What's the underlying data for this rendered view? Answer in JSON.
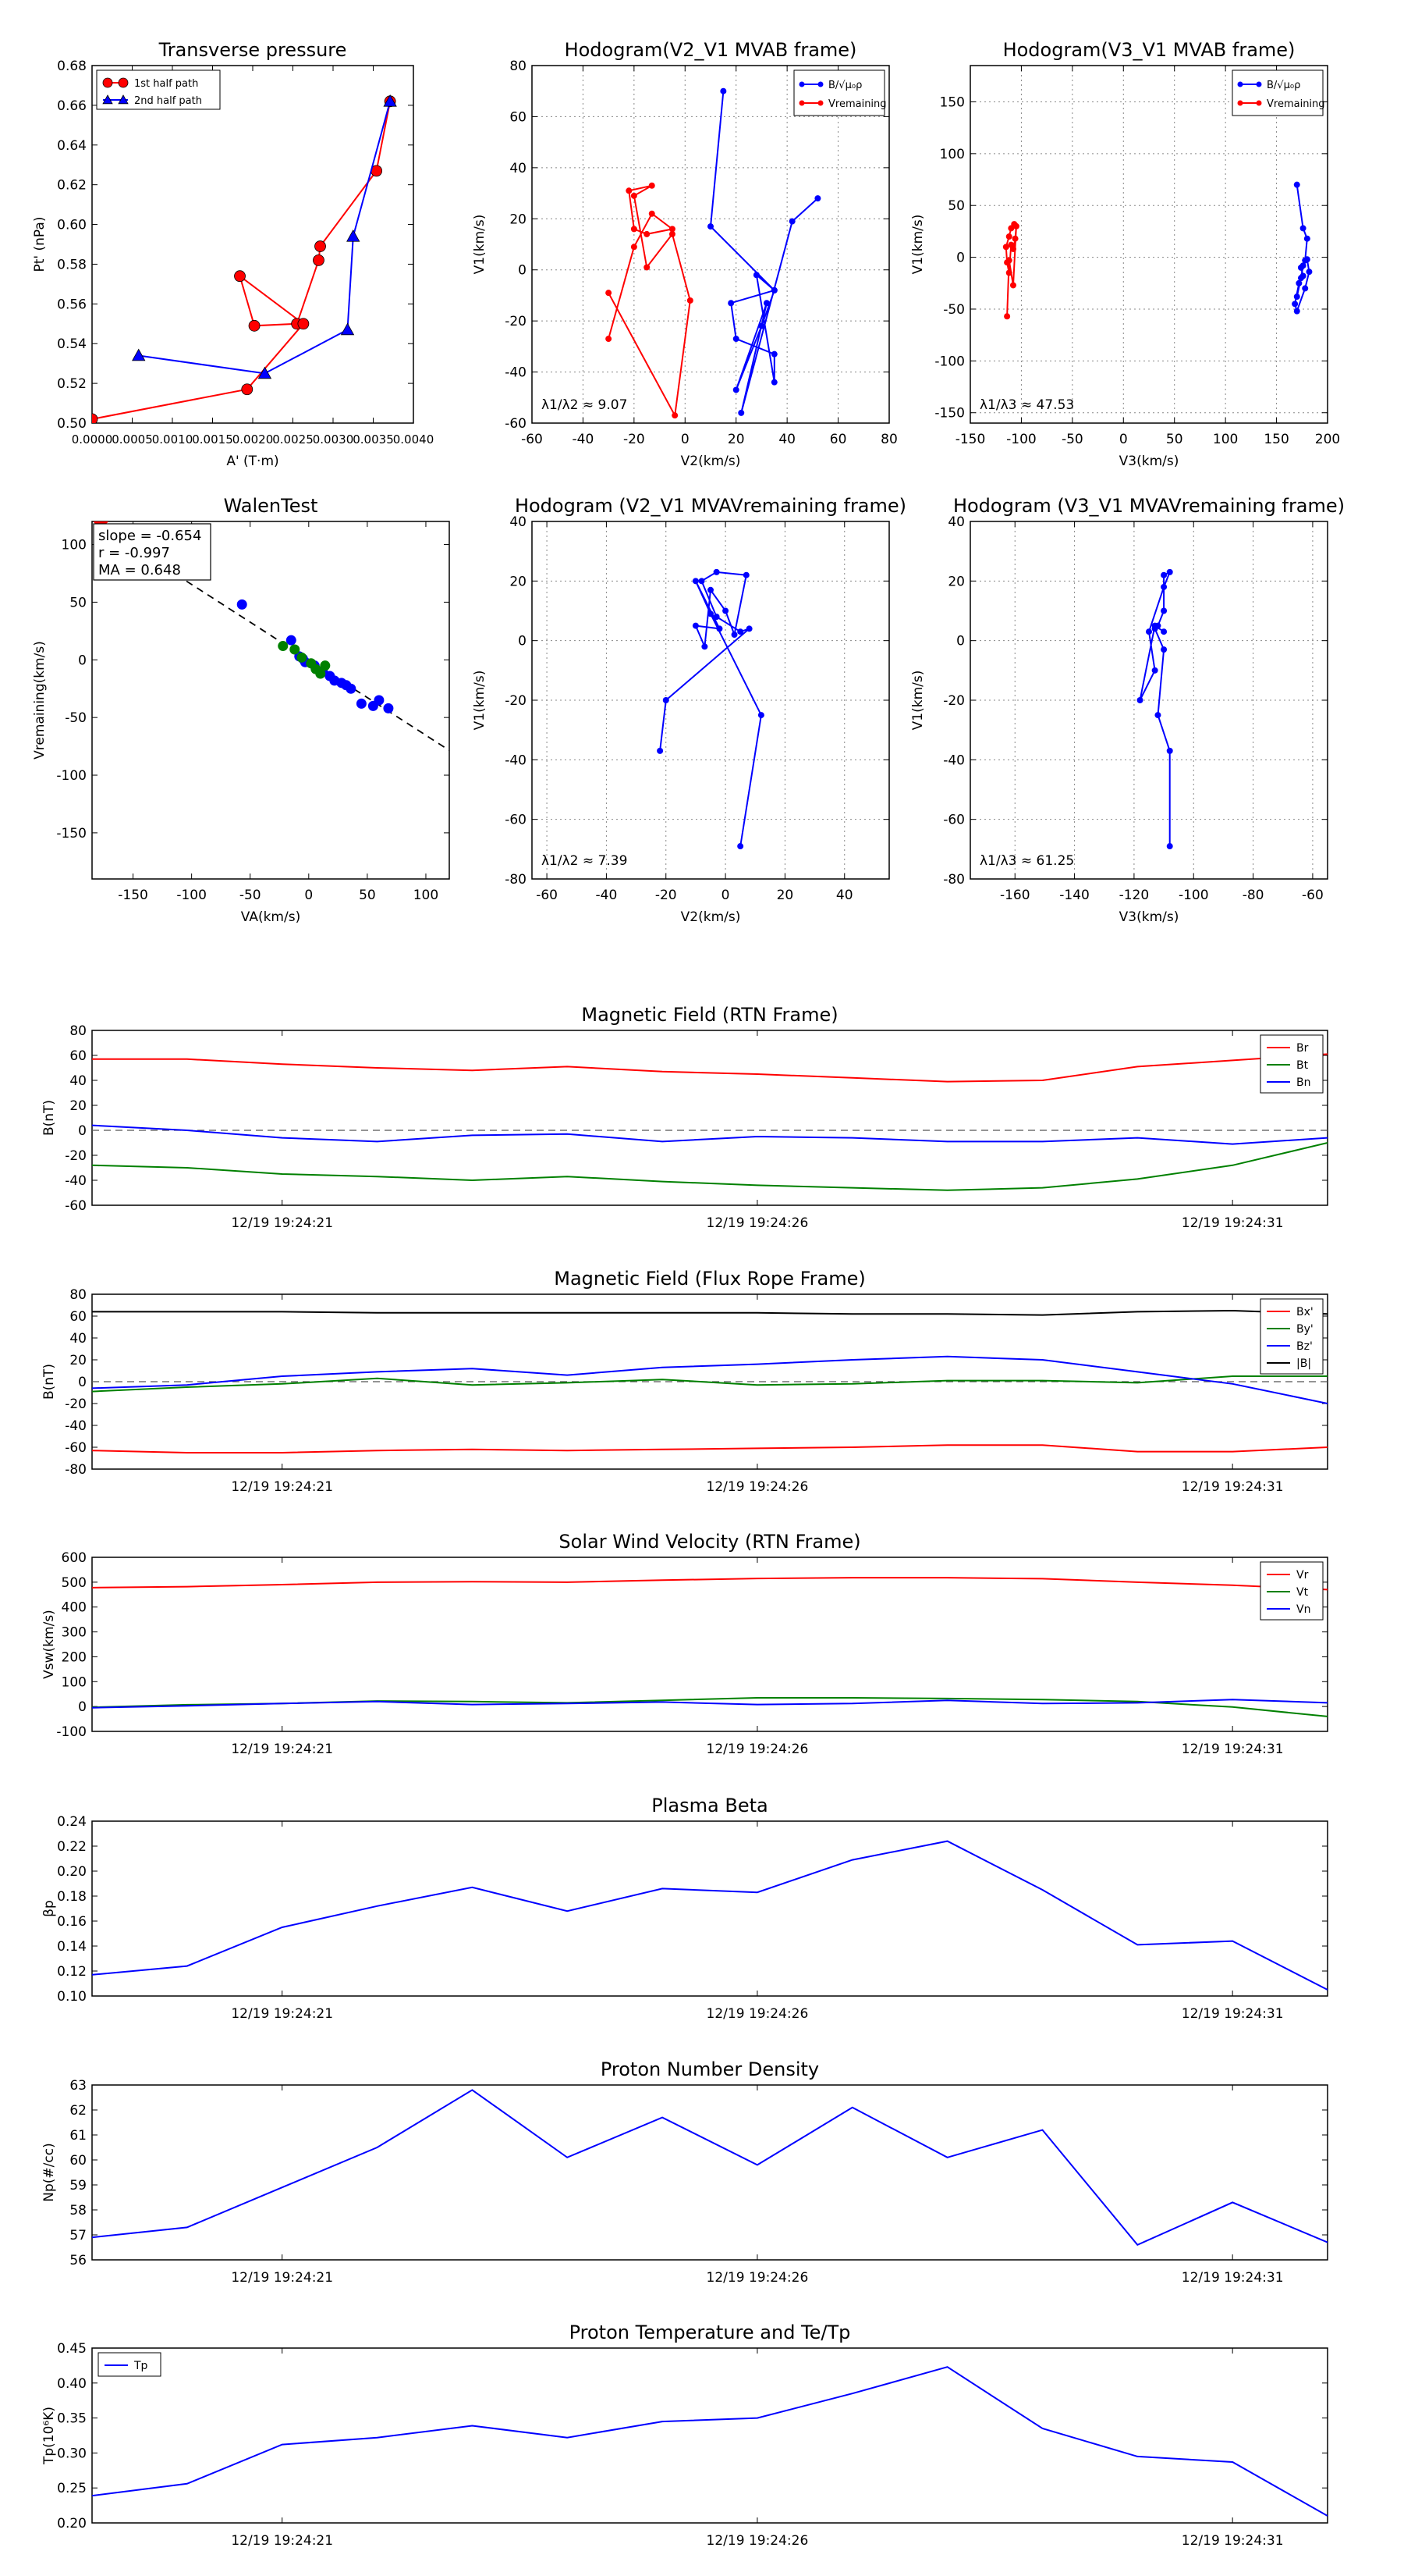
{
  "chart_data": [
    {
      "id": "transverse-pressure",
      "type": "line",
      "title": "Transverse pressure",
      "xlabel": "A' (T·m)",
      "ylabel": "Pt' (nPa)",
      "xlim": [
        0.0,
        0.004
      ],
      "ylim": [
        0.5,
        0.68
      ],
      "xticks": [
        0.0,
        0.0005,
        0.001,
        0.0015,
        0.002,
        0.0025,
        0.003,
        0.0035,
        0.004
      ],
      "xtick_labels": [
        "0.0000",
        "0.0005",
        "0.0010",
        "0.0015",
        "0.0020",
        "0.0025",
        "0.0030",
        "0.0035",
        "0.0040"
      ],
      "yticks": [
        0.5,
        0.52,
        0.54,
        0.56,
        0.58,
        0.6,
        0.62,
        0.64,
        0.66,
        0.68
      ],
      "ytick_labels": [
        "0.50",
        "0.52",
        "0.54",
        "0.56",
        "0.58",
        "0.60",
        "0.62",
        "0.64",
        "0.66",
        "0.68"
      ],
      "grid": false,
      "legend_position": "top-left",
      "series": [
        {
          "name": "1st half path",
          "color": "#ff0000",
          "marker": "circle",
          "x": [
            0.00371,
            0.00354,
            0.00284,
            0.00282,
            0.00255,
            0.00202,
            0.00184,
            0.00263,
            0.00193,
            0.0
          ],
          "y": [
            0.662,
            0.627,
            0.589,
            0.582,
            0.55,
            0.549,
            0.574,
            0.55,
            0.517,
            0.502
          ]
        },
        {
          "name": "2nd half path",
          "color": "#0000ff",
          "marker": "triangle",
          "x": [
            0.00371,
            0.00325,
            0.00318,
            0.00215,
            0.00058
          ],
          "y": [
            0.662,
            0.594,
            0.547,
            0.525,
            0.534
          ]
        }
      ]
    },
    {
      "id": "hodogram-v2v1-mvab",
      "type": "line",
      "title": "Hodogram(V2_V1 MVAB frame)",
      "xlabel": "V2(km/s)",
      "ylabel": "V1(km/s)",
      "xlim": [
        -60,
        80
      ],
      "ylim": [
        -60,
        80
      ],
      "xticks": [
        -60,
        -40,
        -20,
        0,
        20,
        40,
        60,
        80
      ],
      "yticks": [
        -60,
        -40,
        -20,
        0,
        20,
        40,
        60,
        80
      ],
      "grid": true,
      "legend_position": "top-right",
      "legend_labels": [
        "B/√μ₀ρ",
        "Vremaining"
      ],
      "annotation": "λ1/λ2 ≈ 9.07",
      "series": [
        {
          "name": "B/sqrt(mu0 rho)",
          "color": "#0000ff",
          "x": [
            15,
            10,
            35,
            18,
            20,
            35,
            35,
            28,
            35,
            30,
            20,
            32,
            22,
            42,
            52
          ],
          "y": [
            70,
            17,
            -8,
            -13,
            -27,
            -33,
            -44,
            -2,
            -8,
            -22,
            -47,
            -13,
            -56,
            19,
            28
          ]
        },
        {
          "name": "V remaining",
          "color": "#ff0000",
          "x": [
            -30,
            -20,
            -13,
            -5,
            -15,
            -20,
            -22,
            -13,
            -20,
            -15,
            -5,
            2,
            -4,
            -30
          ],
          "y": [
            -27,
            9,
            22,
            16,
            14,
            16,
            31,
            33,
            29,
            1,
            14,
            -12,
            -57,
            -9
          ]
        }
      ]
    },
    {
      "id": "hodogram-v3v1-mvab",
      "type": "line",
      "title": "Hodogram(V3_V1 MVAB frame)",
      "xlabel": "V3(km/s)",
      "ylabel": "V1(km/s)",
      "xlim": [
        -150,
        200
      ],
      "ylim": [
        -160,
        185
      ],
      "xticks": [
        -150,
        -100,
        -50,
        0,
        50,
        100,
        150,
        200
      ],
      "yticks": [
        -150,
        -100,
        -50,
        0,
        50,
        100,
        150
      ],
      "grid": true,
      "legend_position": "top-right",
      "legend_labels": [
        "B/√μ₀ρ",
        "Vremaining"
      ],
      "annotation": "λ1/λ3 ≈ 47.53",
      "series": [
        {
          "name": "B/sqrt(mu0 rho)",
          "color": "#0000ff",
          "x": [
            170,
            176,
            180,
            178,
            174,
            176,
            172,
            168,
            170,
            178,
            182,
            180,
            176,
            174,
            170
          ],
          "y": [
            70,
            28,
            18,
            -3,
            -10,
            -18,
            -25,
            -45,
            -52,
            -30,
            -14,
            -2,
            -8,
            -20,
            -38
          ]
        },
        {
          "name": "V remaining",
          "color": "#ff0000",
          "x": [
            -107,
            -110,
            -112,
            -115,
            -114,
            -112,
            -110,
            -108,
            -106,
            -105,
            -108,
            -112,
            -114
          ],
          "y": [
            32,
            28,
            20,
            10,
            -5,
            -15,
            12,
            8,
            18,
            30,
            -27,
            -3,
            -57
          ]
        }
      ]
    },
    {
      "id": "walen-test",
      "type": "scatter",
      "title": "WalenTest",
      "xlabel": "VA(km/s)",
      "ylabel": "Vremaining(km/s)",
      "xlim": [
        -185,
        120
      ],
      "ylim": [
        -190,
        120
      ],
      "xticks": [
        -150,
        -100,
        -50,
        0,
        50,
        100
      ],
      "yticks": [
        -150,
        -100,
        -50,
        0,
        50,
        100
      ],
      "grid": false,
      "annotation_lines": [
        "slope = -0.654",
        "r = -0.997",
        "MA = 0.648"
      ],
      "fit_line": {
        "slope": -0.654,
        "intercept": 0,
        "color": "#000000",
        "style": "dashed"
      },
      "series": [
        {
          "name": "blue points",
          "color": "#0000ff",
          "x": [
            -57,
            -15,
            -8,
            -5,
            -3,
            5,
            12,
            18,
            22,
            28,
            32,
            36,
            45,
            55,
            60,
            68
          ],
          "y": [
            48,
            17,
            3,
            1,
            -2,
            -5,
            -10,
            -14,
            -18,
            -20,
            -22,
            -25,
            -38,
            -40,
            -35,
            -42
          ]
        },
        {
          "name": "green points",
          "color": "#008000",
          "x": [
            -22,
            -12,
            -6,
            2,
            6,
            10,
            14
          ],
          "y": [
            12,
            9,
            2,
            -3,
            -8,
            -12,
            -5
          ]
        },
        {
          "name": "red points",
          "color": "#ff0000",
          "x": [
            -180,
            -175
          ],
          "y": [
            122,
            122
          ]
        }
      ]
    },
    {
      "id": "hodogram-v2v1-mvav",
      "type": "line",
      "title": "Hodogram (V2_V1 MVAVremaining frame)",
      "xlabel": "V2(km/s)",
      "ylabel": "V1(km/s)",
      "xlim": [
        -65,
        55
      ],
      "ylim": [
        -80,
        40
      ],
      "xticks": [
        -60,
        -40,
        -20,
        0,
        20,
        40
      ],
      "yticks": [
        -80,
        -60,
        -40,
        -20,
        0,
        20,
        40
      ],
      "grid": true,
      "annotation": "λ1/λ2 ≈ 7.39",
      "series": [
        {
          "name": "V remaining",
          "color": "#0000ff",
          "x": [
            5,
            12,
            -5,
            -10,
            -2,
            -10,
            -7,
            -5,
            0,
            3,
            7,
            -3,
            -8,
            -3,
            5,
            8,
            -20,
            -22
          ],
          "y": [
            -69,
            -25,
            9,
            20,
            4,
            5,
            -2,
            17,
            10,
            2,
            22,
            23,
            20,
            8,
            3,
            4,
            -20,
            -37
          ]
        }
      ]
    },
    {
      "id": "hodogram-v3v1-mvav",
      "type": "line",
      "title": "Hodogram (V3_V1 MVAVremaining frame)",
      "xlabel": "V3(km/s)",
      "ylabel": "V1(km/s)",
      "xlim": [
        -175,
        -55
      ],
      "ylim": [
        -80,
        40
      ],
      "xticks": [
        -160,
        -140,
        -120,
        -100,
        -80,
        -60
      ],
      "yticks": [
        -80,
        -60,
        -40,
        -20,
        0,
        20,
        40
      ],
      "grid": true,
      "annotation": "λ1/λ3 ≈ 61.25",
      "series": [
        {
          "name": "V remaining",
          "color": "#0000ff",
          "x": [
            -108,
            -108,
            -112,
            -110,
            -113,
            -112,
            -110,
            -110,
            -108,
            -110,
            -115,
            -113,
            -118,
            -113,
            -110
          ],
          "y": [
            -69,
            -37,
            -25,
            -3,
            4,
            5,
            10,
            22,
            23,
            18,
            3,
            -10,
            -20,
            5,
            3
          ]
        }
      ]
    },
    {
      "id": "magnetic-field-rtn",
      "type": "line",
      "title": "Magnetic Field (RTN Frame)",
      "xlabel": "",
      "ylabel": "B(nT)",
      "ylim": [
        -60,
        80
      ],
      "yticks": [
        -60,
        -40,
        -20,
        0,
        20,
        40,
        60,
        80
      ],
      "x": [
        0,
        1,
        2,
        3,
        4,
        5,
        6,
        7,
        8,
        9,
        10,
        11,
        12,
        13
      ],
      "xlim": [
        0,
        13
      ],
      "xtick_positions": [
        2,
        7,
        12
      ],
      "xtick_labels": [
        "12/19 19:24:21",
        "12/19 19:24:26",
        "12/19 19:24:31"
      ],
      "zero_line": true,
      "legend_position": "top-right",
      "series": [
        {
          "name": "Br",
          "color": "#ff0000",
          "values": [
            57,
            57,
            53,
            50,
            48,
            51,
            47,
            45,
            42,
            39,
            40,
            51,
            56,
            61
          ]
        },
        {
          "name": "Bt",
          "color": "#008000",
          "values": [
            -28,
            -30,
            -35,
            -37,
            -40,
            -37,
            -41,
            -44,
            -46,
            -48,
            -46,
            -39,
            -28,
            -10
          ]
        },
        {
          "name": "Bn",
          "color": "#0000ff",
          "values": [
            4,
            0,
            -6,
            -9,
            -4,
            -3,
            -9,
            -5,
            -6,
            -9,
            -9,
            -6,
            -11,
            -6
          ]
        }
      ]
    },
    {
      "id": "magnetic-field-flux-rope",
      "type": "line",
      "title": "Magnetic Field (Flux Rope Frame)",
      "xlabel": "",
      "ylabel": "B(nT)",
      "ylim": [
        -80,
        80
      ],
      "yticks": [
        -80,
        -60,
        -40,
        -20,
        0,
        20,
        40,
        60,
        80
      ],
      "x": [
        0,
        1,
        2,
        3,
        4,
        5,
        6,
        7,
        8,
        9,
        10,
        11,
        12,
        13
      ],
      "xlim": [
        0,
        13
      ],
      "xtick_positions": [
        2,
        7,
        12
      ],
      "xtick_labels": [
        "12/19 19:24:21",
        "12/19 19:24:26",
        "12/19 19:24:31"
      ],
      "zero_line": true,
      "legend_position": "top-right",
      "series": [
        {
          "name": "Bx'",
          "color": "#ff0000",
          "values": [
            -63,
            -65,
            -65,
            -63,
            -62,
            -63,
            -62,
            -61,
            -60,
            -58,
            -58,
            -64,
            -64,
            -60
          ]
        },
        {
          "name": "By'",
          "color": "#008000",
          "values": [
            -9,
            -5,
            -2,
            3,
            -3,
            -1,
            2,
            -3,
            -2,
            1,
            1,
            -1,
            5,
            5
          ]
        },
        {
          "name": "Bz'",
          "color": "#0000ff",
          "values": [
            -6,
            -3,
            5,
            9,
            12,
            6,
            13,
            16,
            20,
            23,
            20,
            9,
            -2,
            -20
          ]
        },
        {
          "name": "|B|",
          "color": "#000000",
          "values": [
            64,
            64,
            64,
            63,
            63,
            63,
            63,
            63,
            62,
            62,
            61,
            64,
            65,
            62
          ]
        }
      ]
    },
    {
      "id": "solar-wind-velocity",
      "type": "line",
      "title": "Solar Wind Velocity (RTN Frame)",
      "xlabel": "",
      "ylabel": "Vsw(km/s)",
      "ylim": [
        -100,
        600
      ],
      "yticks": [
        -100,
        0,
        100,
        200,
        300,
        400,
        500,
        600
      ],
      "x": [
        0,
        1,
        2,
        3,
        4,
        5,
        6,
        7,
        8,
        9,
        10,
        11,
        12,
        13
      ],
      "xlim": [
        0,
        13
      ],
      "xtick_positions": [
        2,
        7,
        12
      ],
      "xtick_labels": [
        "12/19 19:24:21",
        "12/19 19:24:26",
        "12/19 19:24:31"
      ],
      "legend_position": "top-right",
      "series": [
        {
          "name": "Vr",
          "color": "#ff0000",
          "values": [
            478,
            482,
            490,
            500,
            502,
            500,
            508,
            515,
            518,
            518,
            514,
            500,
            488,
            470
          ]
        },
        {
          "name": "Vt",
          "color": "#008000",
          "values": [
            -3,
            7,
            12,
            22,
            20,
            15,
            25,
            35,
            35,
            32,
            28,
            20,
            -2,
            -40
          ]
        },
        {
          "name": "Vn",
          "color": "#0000ff",
          "values": [
            -5,
            3,
            12,
            20,
            8,
            12,
            18,
            8,
            12,
            25,
            12,
            15,
            28,
            15
          ]
        }
      ]
    },
    {
      "id": "plasma-beta",
      "type": "line",
      "title": "Plasma Beta",
      "xlabel": "",
      "ylabel": "βp",
      "ylim": [
        0.1,
        0.24
      ],
      "yticks": [
        0.1,
        0.12,
        0.14,
        0.16,
        0.18,
        0.2,
        0.22,
        0.24
      ],
      "ytick_labels": [
        "0.10",
        "0.12",
        "0.14",
        "0.16",
        "0.18",
        "0.20",
        "0.22",
        "0.24"
      ],
      "x": [
        0,
        1,
        2,
        3,
        4,
        5,
        6,
        7,
        8,
        9,
        10,
        11,
        12,
        13
      ],
      "xlim": [
        0,
        13
      ],
      "xtick_positions": [
        2,
        7,
        12
      ],
      "xtick_labels": [
        "12/19 19:24:21",
        "12/19 19:24:26",
        "12/19 19:24:31"
      ],
      "series": [
        {
          "name": "beta",
          "color": "#0000ff",
          "values": [
            0.117,
            0.124,
            0.155,
            0.172,
            0.187,
            0.168,
            0.186,
            0.183,
            0.209,
            0.224,
            0.185,
            0.141,
            0.144,
            0.105
          ]
        }
      ]
    },
    {
      "id": "proton-number-density",
      "type": "line",
      "title": "Proton Number Density",
      "xlabel": "",
      "ylabel": "Np(#/cc)",
      "ylim": [
        56,
        63
      ],
      "yticks": [
        56,
        57,
        58,
        59,
        60,
        61,
        62,
        63
      ],
      "x": [
        0,
        1,
        2,
        3,
        4,
        5,
        6,
        7,
        8,
        9,
        10,
        11,
        12,
        13
      ],
      "xlim": [
        0,
        13
      ],
      "xtick_positions": [
        2,
        7,
        12
      ],
      "xtick_labels": [
        "12/19 19:24:21",
        "12/19 19:24:26",
        "12/19 19:24:31"
      ],
      "series": [
        {
          "name": "Np",
          "color": "#0000ff",
          "values": [
            56.9,
            57.3,
            58.9,
            60.5,
            62.8,
            60.1,
            61.7,
            59.8,
            62.1,
            60.1,
            61.2,
            56.6,
            58.3,
            56.7
          ]
        }
      ]
    },
    {
      "id": "proton-temperature",
      "type": "line",
      "title": "Proton Temperature and Te/Tp",
      "xlabel": "",
      "ylabel": "Tp(10⁶K)",
      "ylim": [
        0.2,
        0.45
      ],
      "yticks": [
        0.2,
        0.25,
        0.3,
        0.35,
        0.4,
        0.45
      ],
      "ytick_labels": [
        "0.20",
        "0.25",
        "0.30",
        "0.35",
        "0.40",
        "0.45"
      ],
      "x": [
        0,
        1,
        2,
        3,
        4,
        5,
        6,
        7,
        8,
        9,
        10,
        11,
        12,
        13
      ],
      "xlim": [
        0,
        13
      ],
      "xtick_positions": [
        2,
        7,
        12
      ],
      "xtick_labels": [
        "12/19 19:24:21",
        "12/19 19:24:26",
        "12/19 19:24:31"
      ],
      "legend_position": "top-left",
      "series": [
        {
          "name": "Tp",
          "color": "#0000ff",
          "values": [
            0.239,
            0.256,
            0.312,
            0.322,
            0.339,
            0.322,
            0.345,
            0.35,
            0.385,
            0.423,
            0.335,
            0.295,
            0.287,
            0.21
          ]
        }
      ]
    }
  ]
}
